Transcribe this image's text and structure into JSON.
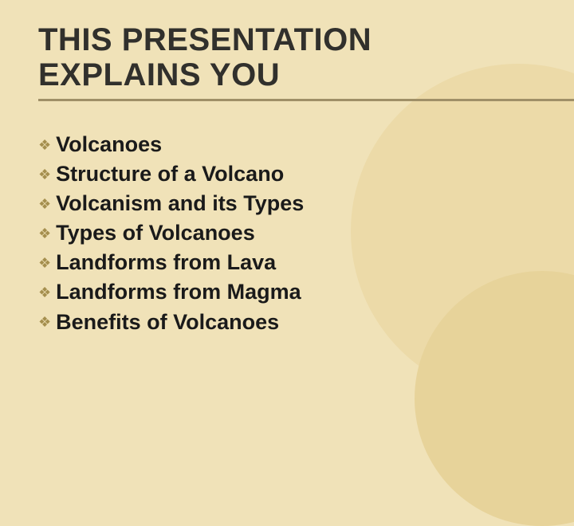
{
  "background_color": "#f0e2b8",
  "circle1_color": "#ecdaa8",
  "circle2_color": "#e7d39a",
  "rule_color": "#9f8f67",
  "title": {
    "line1": "THIS PRESENTATION",
    "line2": "EXPLAINS YOU",
    "color": "#31302c",
    "fontsize": 40,
    "fontweight": 800
  },
  "bullet": {
    "glyph": "❖",
    "color": "#a58f4e",
    "fontsize": 18
  },
  "items": [
    {
      "label": "Volcanoes"
    },
    {
      "label": "Structure of a Volcano"
    },
    {
      "label": "Volcanism and its Types"
    },
    {
      "label": "Types of Volcanoes"
    },
    {
      "label": "Landforms from Lava"
    },
    {
      "label": "Landforms from Magma"
    },
    {
      "label": "Benefits of Volcanoes"
    }
  ],
  "item_style": {
    "fontsize": 27,
    "fontweight": 700,
    "color": "#1a1a1a"
  }
}
